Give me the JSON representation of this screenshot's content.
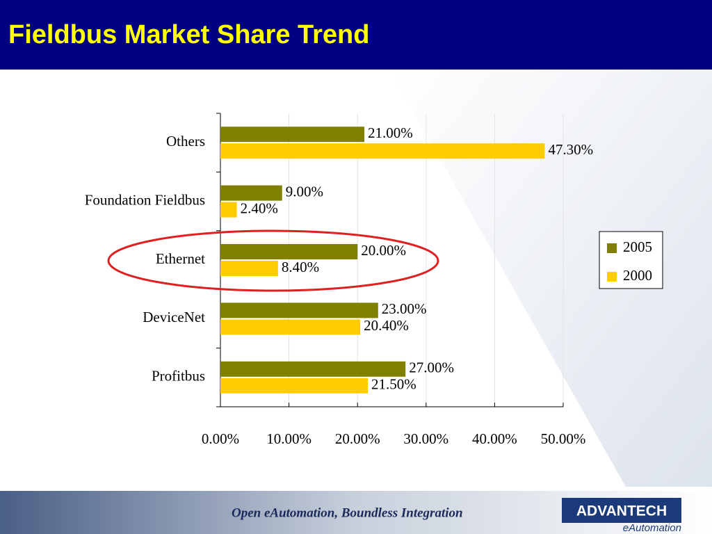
{
  "chart_data": {
    "type": "hbar",
    "title": "Fieldbus Market Share Trend",
    "categories": [
      "Others",
      "Foundation Fieldbus",
      "Ethernet",
      "DeviceNet",
      "Profitbus"
    ],
    "series": [
      {
        "name": "2005",
        "color": "#808000",
        "values": [
          21,
          9,
          20,
          23,
          27
        ],
        "value_labels": [
          "21.00%",
          "9.00%",
          "20.00%",
          "23.00%",
          "27.00%"
        ]
      },
      {
        "name": "2000",
        "color": "#ffcc00",
        "values": [
          47.3,
          2.4,
          8.4,
          20.4,
          21.5
        ],
        "value_labels": [
          "47.30%",
          "2.40%",
          "8.40%",
          "20.40%",
          "21.50%"
        ]
      }
    ],
    "xlim": [
      0,
      50
    ],
    "xticks": [
      {
        "value": 0,
        "label": "0.00%"
      },
      {
        "value": 10,
        "label": "10.00%"
      },
      {
        "value": 20,
        "label": "20.00%"
      },
      {
        "value": 30,
        "label": "30.00%"
      },
      {
        "value": 40,
        "label": "40.00%"
      },
      {
        "value": 50,
        "label": "50.00%"
      }
    ],
    "grid": true,
    "legend": "right"
  },
  "footer": {
    "slogan": "Open eAutomation, Boundless Integration",
    "logo": "ADVANTECH",
    "logo_sub": "eAutomation"
  }
}
